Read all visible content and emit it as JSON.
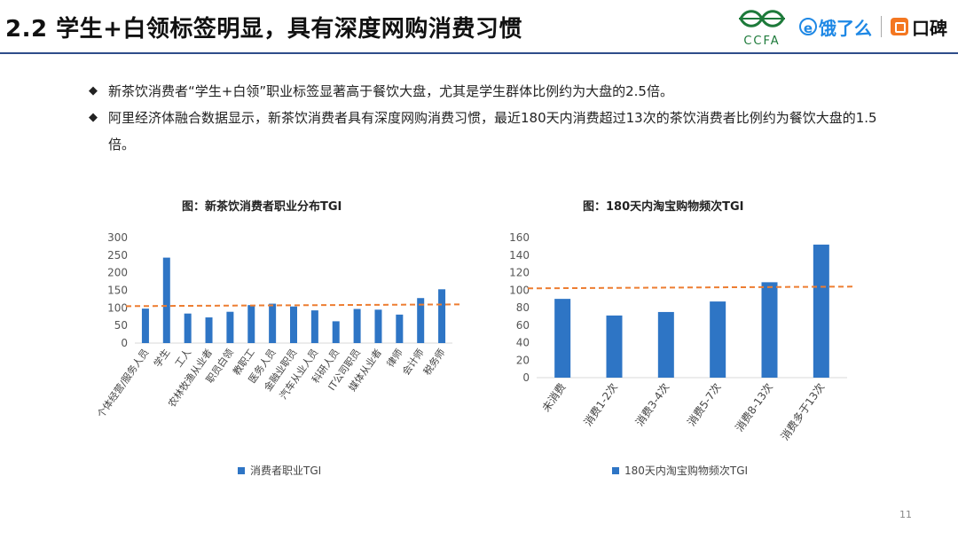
{
  "header": {
    "title": "2.2 学生+白领标签明显，具有深度网购消费习惯",
    "logo_ccfa": "CCFA",
    "logo_eleme": "饿了么",
    "logo_koubei": "口碑"
  },
  "bullets": [
    "新茶饮消费者“学生+白领”职业标签显著高于餐饮大盘，尤其是学生群体比例约为大盘的2.5倍。",
    "阿里经济体融合数据显示，新茶饮消费者具有深度网购消费习惯，最近180天内消费超过13次的茶饮消费者比例约为餐饮大盘的1.5倍。"
  ],
  "colors": {
    "bar": "#2e75c5",
    "ref_line": "#ed7d31",
    "axis": "#d9d9d9"
  },
  "page_number": "11",
  "chart_data": [
    {
      "type": "bar",
      "title": "图：新茶饮消费者职业分布TGI",
      "categories": [
        "个体经营/服务人员",
        "学生",
        "工人",
        "农林牧渔从业者",
        "职员白领",
        "教职工",
        "医务人员",
        "金融业职员",
        "汽车从业人员",
        "科研人员",
        "IT公司职员",
        "媒体从业者",
        "律师",
        "会计师",
        "税务师"
      ],
      "series": [
        {
          "name": "消费者职业TGI",
          "values": [
            98,
            243,
            84,
            73,
            89,
            108,
            112,
            104,
            93,
            62,
            97,
            95,
            81,
            128,
            153
          ]
        }
      ],
      "reference_line": 105,
      "ylim": [
        0,
        300
      ],
      "yticks": [
        0,
        50,
        100,
        150,
        200,
        250,
        300
      ],
      "legend": "bottom"
    },
    {
      "type": "bar",
      "title": "图：180天内淘宝购物频次TGI",
      "categories": [
        "未消费",
        "消费1-2次",
        "消费3-4次",
        "消费5-7次",
        "消费8-13次",
        "消费多于13次"
      ],
      "series": [
        {
          "name": "180天内淘宝购物频次TGI",
          "values": [
            90,
            71,
            75,
            87,
            109,
            152
          ]
        }
      ],
      "reference_line": 102,
      "ylim": [
        0,
        160
      ],
      "yticks": [
        0,
        20,
        40,
        60,
        80,
        100,
        120,
        140,
        160
      ],
      "legend": "bottom"
    }
  ]
}
